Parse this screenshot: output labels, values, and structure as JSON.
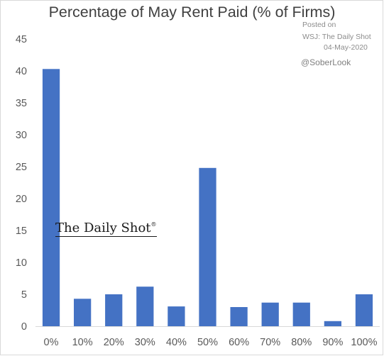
{
  "chart_data": {
    "type": "bar",
    "title": "Percentage of May Rent Paid (% of Firms)",
    "xlabel": "",
    "ylabel": "",
    "categories": [
      "0%",
      "10%",
      "20%",
      "30%",
      "40%",
      "50%",
      "60%",
      "70%",
      "80%",
      "90%",
      "100%"
    ],
    "values": [
      40.3,
      4.3,
      5.0,
      6.2,
      3.1,
      24.8,
      3.0,
      3.7,
      3.7,
      0.8,
      5.0
    ],
    "ylim": [
      0,
      45
    ],
    "yticks": [
      0,
      5,
      10,
      15,
      20,
      25,
      30,
      35,
      40,
      45
    ],
    "grid": false,
    "legend": "none",
    "bar_color": "#4472c4",
    "axis_color": "#d9d9d9"
  },
  "annotations": {
    "posted": "Posted on",
    "source": "WSJ: The Daily Shot",
    "date": "04-May-2020",
    "handle": "@SoberLook"
  },
  "watermark": {
    "text": "The Daily Shot",
    "mark": "®"
  }
}
